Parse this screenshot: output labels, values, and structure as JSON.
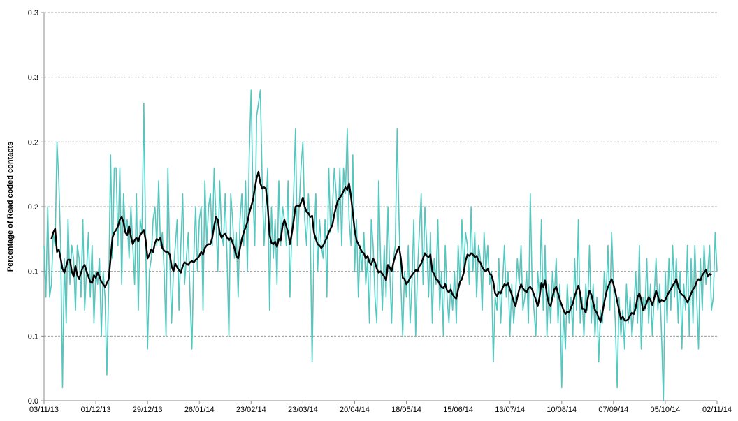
{
  "chart_data": {
    "type": "line",
    "y_label": "Percentage of Read coded contacts",
    "ylim": [
      0,
      0.3
    ],
    "yticks": [
      {
        "value": 0,
        "label": "0.0"
      },
      {
        "value": 0.05,
        "label": "0.1"
      },
      {
        "value": 0.1,
        "label": "0.1"
      },
      {
        "value": 0.15,
        "label": "0.2"
      },
      {
        "value": 0.2,
        "label": "0.2"
      },
      {
        "value": 0.25,
        "label": "0.3"
      },
      {
        "value": 0.3,
        "label": "0.3"
      }
    ],
    "grid": true,
    "categories": [
      "03/11/13",
      null,
      null,
      null,
      null,
      null,
      null,
      null,
      null,
      null,
      null,
      null,
      null,
      null,
      null,
      null,
      null,
      null,
      null,
      null,
      null,
      null,
      null,
      null,
      null,
      null,
      null,
      null,
      "01/12/13",
      null,
      null,
      null,
      null,
      null,
      null,
      null,
      null,
      null,
      null,
      null,
      null,
      null,
      null,
      null,
      null,
      null,
      null,
      null,
      null,
      null,
      null,
      null,
      null,
      null,
      null,
      null,
      "29/12/13",
      null,
      null,
      null,
      null,
      null,
      null,
      null,
      null,
      null,
      null,
      null,
      null,
      null,
      null,
      null,
      null,
      null,
      null,
      null,
      null,
      null,
      null,
      null,
      null,
      null,
      null,
      null,
      "26/01/14",
      null,
      null,
      null,
      null,
      null,
      null,
      null,
      null,
      null,
      null,
      null,
      null,
      null,
      null,
      null,
      null,
      null,
      null,
      null,
      null,
      null,
      null,
      null,
      null,
      null,
      null,
      null,
      "23/02/14",
      null,
      null,
      null,
      null,
      null,
      null,
      null,
      null,
      null,
      null,
      null,
      null,
      null,
      null,
      null,
      null,
      null,
      null,
      null,
      null,
      null,
      null,
      null,
      null,
      null,
      null,
      null,
      "23/03/14",
      null,
      null,
      null,
      null,
      null,
      null,
      null,
      null,
      null,
      null,
      null,
      null,
      null,
      null,
      null,
      null,
      null,
      null,
      null,
      null,
      null,
      null,
      null,
      null,
      null,
      null,
      null,
      "20/04/14",
      null,
      null,
      null,
      null,
      null,
      null,
      null,
      null,
      null,
      null,
      null,
      null,
      null,
      null,
      null,
      null,
      null,
      null,
      null,
      null,
      null,
      null,
      null,
      null,
      null,
      null,
      null,
      "18/05/14",
      null,
      null,
      null,
      null,
      null,
      null,
      null,
      null,
      null,
      null,
      null,
      null,
      null,
      null,
      null,
      null,
      null,
      null,
      null,
      null,
      null,
      null,
      null,
      null,
      null,
      null,
      null,
      "15/06/14",
      null,
      null,
      null,
      null,
      null,
      null,
      null,
      null,
      null,
      null,
      null,
      null,
      null,
      null,
      null,
      null,
      null,
      null,
      null,
      null,
      null,
      null,
      null,
      null,
      null,
      null,
      null,
      "13/07/14",
      null,
      null,
      null,
      null,
      null,
      null,
      null,
      null,
      null,
      null,
      null,
      null,
      null,
      null,
      null,
      null,
      null,
      null,
      null,
      null,
      null,
      null,
      null,
      null,
      null,
      null,
      null,
      "10/08/14",
      null,
      null,
      null,
      null,
      null,
      null,
      null,
      null,
      null,
      null,
      null,
      null,
      null,
      null,
      null,
      null,
      null,
      null,
      null,
      null,
      null,
      null,
      null,
      null,
      null,
      null,
      null,
      "07/09/14",
      null,
      null,
      null,
      null,
      null,
      null,
      null,
      null,
      null,
      null,
      null,
      null,
      null,
      null,
      null,
      null,
      null,
      null,
      null,
      null,
      null,
      null,
      null,
      null,
      null,
      null,
      null,
      "05/10/14",
      null,
      null,
      null,
      null,
      null,
      null,
      null,
      null,
      null,
      null,
      null,
      null,
      null,
      null,
      null,
      null,
      null,
      null,
      null,
      null,
      null,
      null,
      null,
      null,
      null,
      null,
      null,
      "02/11/14"
    ],
    "series": [
      {
        "color": "#55c7bf",
        "width": 1.6,
        "values": [
          0.12,
          0.08,
          0.15,
          0.08,
          0.09,
          0.13,
          0.12,
          0.2,
          0.17,
          0.12,
          0.01,
          0.11,
          0.06,
          0.14,
          0.09,
          0.12,
          0.11,
          0.07,
          0.12,
          0.11,
          0.08,
          0.14,
          0.07,
          0.1,
          0.13,
          0.08,
          0.12,
          0.06,
          0.1,
          0.09,
          0.11,
          0.05,
          0.1,
          0.08,
          0.02,
          0.09,
          0.19,
          0.11,
          0.18,
          0.18,
          0.12,
          0.18,
          0.09,
          0.16,
          0.13,
          0.14,
          0.11,
          0.15,
          0.12,
          0.09,
          0.16,
          0.07,
          0.14,
          0.13,
          0.23,
          0.12,
          0.04,
          0.1,
          0.11,
          0.14,
          0.15,
          0.12,
          0.17,
          0.12,
          0.13,
          0.1,
          0.05,
          0.18,
          0.11,
          0.06,
          0.1,
          0.12,
          0.14,
          0.07,
          0.12,
          0.16,
          0.09,
          0.11,
          0.13,
          0.08,
          0.04,
          0.11,
          0.15,
          0.1,
          0.14,
          0.15,
          0.07,
          0.17,
          0.12,
          0.15,
          0.16,
          0.12,
          0.18,
          0.14,
          0.1,
          0.17,
          0.13,
          0.12,
          0.16,
          0.11,
          0.05,
          0.16,
          0.14,
          0.11,
          0.13,
          0.08,
          0.14,
          0.16,
          0.12,
          0.17,
          0.1,
          0.19,
          0.24,
          0.16,
          0.12,
          0.22,
          0.23,
          0.24,
          0.17,
          0.12,
          0.15,
          0.18,
          0.07,
          0.15,
          0.11,
          0.14,
          0.09,
          0.17,
          0.12,
          0.15,
          0.14,
          0.12,
          0.17,
          0.08,
          0.13,
          0.16,
          0.21,
          0.12,
          0.15,
          0.18,
          0.2,
          0.14,
          0.12,
          0.16,
          0.13,
          0.03,
          0.12,
          0.16,
          0.1,
          0.14,
          0.12,
          0.11,
          0.14,
          0.08,
          0.18,
          0.13,
          0.15,
          0.18,
          0.16,
          0.13,
          0.18,
          0.12,
          0.18,
          0.16,
          0.21,
          0.14,
          0.12,
          0.19,
          0.1,
          0.14,
          0.08,
          0.12,
          0.1,
          0.13,
          0.09,
          0.11,
          0.06,
          0.14,
          0.12,
          0.08,
          0.06,
          0.17,
          0.11,
          0.07,
          0.12,
          0.08,
          0.15,
          0.1,
          0.06,
          0.11,
          0.12,
          0.21,
          0.14,
          0.09,
          0.05,
          0.1,
          0.08,
          0.12,
          0.06,
          0.09,
          0.14,
          0.05,
          0.1,
          0.13,
          0.16,
          0.09,
          0.15,
          0.12,
          0.08,
          0.13,
          0.06,
          0.11,
          0.09,
          0.14,
          0.07,
          0.1,
          0.05,
          0.12,
          0.08,
          0.06,
          0.09,
          0.07,
          0.1,
          0.06,
          0.12,
          0.09,
          0.14,
          0.1,
          0.13,
          0.12,
          0.09,
          0.15,
          0.1,
          0.13,
          0.08,
          0.12,
          0.11,
          0.07,
          0.13,
          0.1,
          0.12,
          0.09,
          0.1,
          0.03,
          0.08,
          0.07,
          0.11,
          0.06,
          0.09,
          0.12,
          0.08,
          0.1,
          0.05,
          0.09,
          0.06,
          0.08,
          0.11,
          0.09,
          0.12,
          0.07,
          0.08,
          0.1,
          0.06,
          0.16,
          0.09,
          0.07,
          0.05,
          0.1,
          0.08,
          0.14,
          0.07,
          0.12,
          0.05,
          0.09,
          0.06,
          0.1,
          0.08,
          0.11,
          0.06,
          0.09,
          0.01,
          0.07,
          0.04,
          0.09,
          0.06,
          0.08,
          0.05,
          0.11,
          0.07,
          0.14,
          0.06,
          0.08,
          0.05,
          0.09,
          0.07,
          0.12,
          0.06,
          0.09,
          0.05,
          0.08,
          0.03,
          0.07,
          0.06,
          0.1,
          0.08,
          0.12,
          0.07,
          0.13,
          0.09,
          0.06,
          0.01,
          0.08,
          0.05,
          0.07,
          0.04,
          0.09,
          0.06,
          0.08,
          0.05,
          0.07,
          0.1,
          0.06,
          0.12,
          0.04,
          0.08,
          0.07,
          0.11,
          0.06,
          0.09,
          0.05,
          0.08,
          0.11,
          0.07,
          0.09,
          0.05,
          0.0,
          0.1,
          0.06,
          0.11,
          0.07,
          0.12,
          0.08,
          0.11,
          0.06,
          0.1,
          0.04,
          0.09,
          0.07,
          0.12,
          0.05,
          0.11,
          0.06,
          0.12,
          0.08,
          0.04,
          0.11,
          0.07,
          0.12,
          0.09,
          0.1,
          0.12,
          0.07,
          0.08,
          0.13,
          0.1
        ]
      },
      {
        "color": "#000000",
        "width": 2.4,
        "values": [
          null,
          null,
          null,
          null,
          0.125,
          0.13,
          0.133,
          0.115,
          0.117,
          0.11,
          0.102,
          0.099,
          0.104,
          0.109,
          0.109,
          0.1,
          0.096,
          0.104,
          0.097,
          0.094,
          0.099,
          0.103,
          0.105,
          0.1,
          0.096,
          0.092,
          0.091,
          0.097,
          0.095,
          0.099,
          0.096,
          0.092,
          0.09,
          0.088,
          0.091,
          0.094,
          0.11,
          0.126,
          0.13,
          0.132,
          0.135,
          0.14,
          0.142,
          0.138,
          0.13,
          0.128,
          0.135,
          0.127,
          0.121,
          0.124,
          0.126,
          0.123,
          0.128,
          0.13,
          0.132,
          0.124,
          0.11,
          0.113,
          0.117,
          0.115,
          0.122,
          0.125,
          0.124,
          0.126,
          0.118,
          0.116,
          0.115,
          0.115,
          0.113,
          0.104,
          0.1,
          0.106,
          0.103,
          0.101,
          0.099,
          0.104,
          0.107,
          0.106,
          0.105,
          0.107,
          0.108,
          0.107,
          0.109,
          0.11,
          0.112,
          0.115,
          0.113,
          0.118,
          0.12,
          0.121,
          0.121,
          0.126,
          0.135,
          0.142,
          0.14,
          0.13,
          0.126,
          0.128,
          0.129,
          0.126,
          0.124,
          0.126,
          0.122,
          0.118,
          0.112,
          0.11,
          0.118,
          0.125,
          0.13,
          0.134,
          0.138,
          0.145,
          0.15,
          0.155,
          0.164,
          0.172,
          0.177,
          0.168,
          0.164,
          0.165,
          0.164,
          0.15,
          0.128,
          0.122,
          0.121,
          0.123,
          0.119,
          0.125,
          0.124,
          0.135,
          0.14,
          0.135,
          0.13,
          0.121,
          0.129,
          0.139,
          0.15,
          0.151,
          0.15,
          0.153,
          0.157,
          0.15,
          0.146,
          0.145,
          0.142,
          0.143,
          0.13,
          0.125,
          0.121,
          0.12,
          0.118,
          0.12,
          0.123,
          0.126,
          0.13,
          0.133,
          0.136,
          0.144,
          0.15,
          0.155,
          0.157,
          0.159,
          0.162,
          0.165,
          0.163,
          0.168,
          0.158,
          0.145,
          0.132,
          0.124,
          0.121,
          0.118,
          0.115,
          0.114,
          0.11,
          0.112,
          0.107,
          0.105,
          0.11,
          0.107,
          0.102,
          0.099,
          0.1,
          0.098,
          0.096,
          0.093,
          0.105,
          0.103,
          0.1,
          0.107,
          0.112,
          0.116,
          0.119,
          0.11,
          0.095,
          0.094,
          0.09,
          0.092,
          0.095,
          0.097,
          0.099,
          0.101,
          0.1,
          0.104,
          0.106,
          0.11,
          0.114,
          0.112,
          0.111,
          0.113,
          0.1,
          0.098,
          0.094,
          0.093,
          0.09,
          0.088,
          0.087,
          0.09,
          0.085,
          0.084,
          0.086,
          0.082,
          0.08,
          0.079,
          0.086,
          0.092,
          0.094,
          0.099,
          0.108,
          0.113,
          0.112,
          0.114,
          0.113,
          0.111,
          0.112,
          0.108,
          0.107,
          0.103,
          0.101,
          0.1,
          0.102,
          0.098,
          0.097,
          0.092,
          0.083,
          0.081,
          0.084,
          0.083,
          0.087,
          0.09,
          0.089,
          0.091,
          0.086,
          0.082,
          0.077,
          0.073,
          0.08,
          0.086,
          0.09,
          0.087,
          0.085,
          0.084,
          0.087,
          0.088,
          0.086,
          0.082,
          0.078,
          0.073,
          0.08,
          0.091,
          0.088,
          0.093,
          0.082,
          0.075,
          0.073,
          0.08,
          0.086,
          0.088,
          0.083,
          0.078,
          0.074,
          0.07,
          0.067,
          0.069,
          0.068,
          0.072,
          0.075,
          0.081,
          0.085,
          0.089,
          0.083,
          0.071,
          0.071,
          0.068,
          0.078,
          0.085,
          0.082,
          0.076,
          0.07,
          0.068,
          0.064,
          0.061,
          0.068,
          0.076,
          0.083,
          0.088,
          0.091,
          0.094,
          0.09,
          0.084,
          0.077,
          0.07,
          0.063,
          0.065,
          0.062,
          0.062,
          0.063,
          0.066,
          0.068,
          0.067,
          0.072,
          0.08,
          0.083,
          0.078,
          0.07,
          0.072,
          0.076,
          0.08,
          0.078,
          0.074,
          0.079,
          0.085,
          0.081,
          0.076,
          0.078,
          0.077,
          0.078,
          0.081,
          0.084,
          0.086,
          0.089,
          0.091,
          0.094,
          0.088,
          0.084,
          0.082,
          0.081,
          0.079,
          0.076,
          0.079,
          0.083,
          0.086,
          0.088,
          0.092,
          0.094,
          0.093,
          0.097,
          0.099,
          0.101,
          0.096,
          0.098,
          0.097,
          null,
          null,
          null
        ]
      }
    ]
  }
}
